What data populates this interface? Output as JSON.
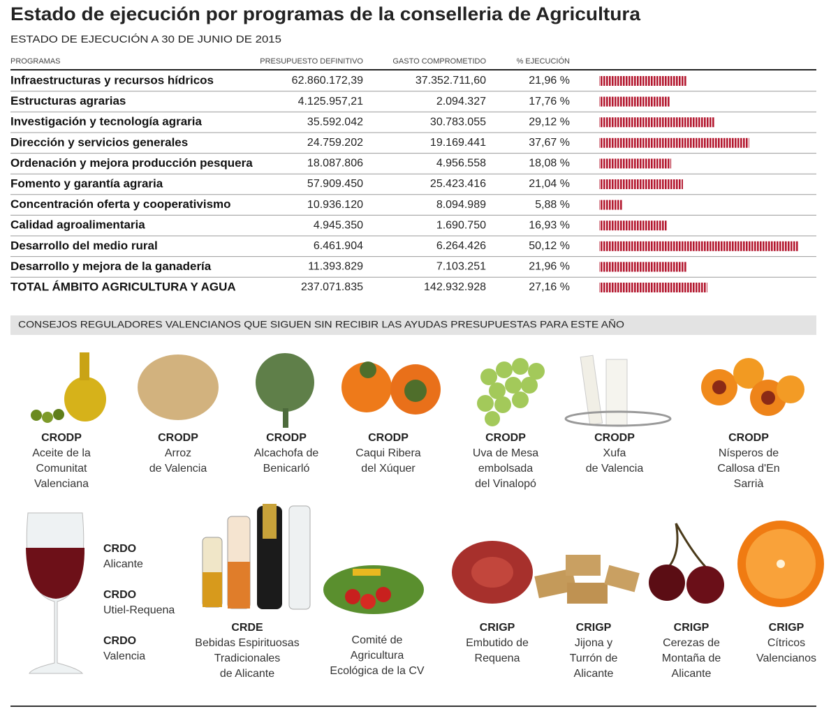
{
  "header": {
    "title": "Estado de ejecución por programas de la conselleria de Agricultura",
    "subtitle": "ESTADO DE EJECUCIÓN A 30 DE JUNIO DE 2015"
  },
  "table": {
    "columns": [
      "PROGRAMAS",
      "PRESUPUESTO DEFINITIVO",
      "GASTO COMPROMETIDO",
      "% EJECUCIÓN"
    ],
    "rows": [
      {
        "programa": "Infraestructuras y recursos hídricos",
        "presupuesto": "62.860.172,39",
        "gasto": "37.352.711,60",
        "ejecucion": {
          "value": 21.96,
          "label": "21,96 %"
        }
      },
      {
        "programa": "Estructuras agrarias",
        "presupuesto": "4.125.957,21",
        "gasto": "2.094.327",
        "ejecucion": {
          "value": 17.76,
          "label": "17,76 %"
        }
      },
      {
        "programa": "Investigación y tecnología agraria",
        "presupuesto": "35.592.042",
        "gasto": "30.783.055",
        "ejecucion": {
          "value": 29.12,
          "label": "29,12 %"
        }
      },
      {
        "programa": "Dirección y servicios generales",
        "presupuesto": "24.759.202",
        "gasto": "19.169.441",
        "ejecucion": {
          "value": 37.67,
          "label": "37,67 %"
        }
      },
      {
        "programa": "Ordenación y mejora producción pesquera",
        "presupuesto": "18.087.806",
        "gasto": "4.956.558",
        "ejecucion": {
          "value": 18.08,
          "label": "18,08 %"
        }
      },
      {
        "programa": "Fomento y  garantía agraria",
        "presupuesto": "57.909.450",
        "gasto": "25.423.416",
        "ejecucion": {
          "value": 21.04,
          "label": "21,04 %"
        }
      },
      {
        "programa": "Concentración oferta y cooperativismo",
        "presupuesto": "10.936.120",
        "gasto": "8.094.989",
        "ejecucion": {
          "value": 5.88,
          "label": "5,88 %"
        }
      },
      {
        "programa": "Calidad agroalimentaria",
        "presupuesto": "4.945.350",
        "gasto": "1.690.750",
        "ejecucion": {
          "value": 16.93,
          "label": "16,93 %"
        }
      },
      {
        "programa": "Desarrollo del medio rural",
        "presupuesto": "6.461.904",
        "gasto": "6.264.426",
        "ejecucion": {
          "value": 50.12,
          "label": "50,12 %"
        }
      },
      {
        "programa": "Desarrollo y mejora de la ganadería",
        "presupuesto": "11.393.829",
        "gasto": "7.103.251",
        "ejecucion": {
          "value": 21.96,
          "label": "21,96 %"
        }
      },
      {
        "programa": "TOTAL ÁMBITO AGRICULTURA Y AGUA",
        "presupuesto": "237.071.835",
        "gasto": "142.932.928",
        "ejecucion": {
          "value": 27.16,
          "label": "27,16 %"
        }
      }
    ]
  },
  "section_title": "CONSEJOS REGULADORES VALENCIANOS QUE SIGUEN SIN RECIBIR LAS AYUDAS PRESUPUESTAS PARA ESTE AÑO",
  "products": [
    {
      "type": "CRODP",
      "name": [
        "Aceite de la",
        "Comunitat",
        "Valenciana"
      ]
    },
    {
      "type": "CRODP",
      "name": [
        "Arroz",
        "de Valencia"
      ]
    },
    {
      "type": "CRODP",
      "name": [
        "Alcachofa de",
        "Benicarló"
      ]
    },
    {
      "type": "CRODP",
      "name": [
        "Caqui Ribera",
        "del Xúquer"
      ]
    },
    {
      "type": "CRODP",
      "name": [
        "Uva de Mesa",
        "embolsada",
        "del Vinalopó"
      ]
    },
    {
      "type": "CRODP",
      "name": [
        "Xufa",
        "de Valencia"
      ]
    },
    {
      "type": "CRODP",
      "name": [
        "Nísperos de",
        "Callosa d'En",
        "Sarrià"
      ]
    }
  ],
  "wines": [
    {
      "type": "CRDO",
      "name": "Alicante"
    },
    {
      "type": "CRDO",
      "name": "Utiel-Requena"
    },
    {
      "type": "CRDO",
      "name": "Valencia"
    }
  ],
  "products2": [
    {
      "type": "CRDE",
      "name": [
        "Bebidas Espirituosas",
        "Tradicionales",
        "de Alicante"
      ]
    },
    {
      "name": [
        "Comité de",
        "Agricultura",
        "Ecológica de la CV"
      ]
    },
    {
      "type": "CRIGP",
      "name": [
        "Embutido de",
        "Requena"
      ]
    },
    {
      "type": "CRIGP",
      "name": [
        "Jijona y",
        "Turrón de",
        "Alicante"
      ]
    },
    {
      "type": "CRIGP",
      "name": [
        "Cerezas de",
        "Montaña de",
        "Alicante"
      ]
    },
    {
      "type": "CRIGP",
      "name": [
        "Cítricos",
        "Valencianos"
      ]
    }
  ]
}
